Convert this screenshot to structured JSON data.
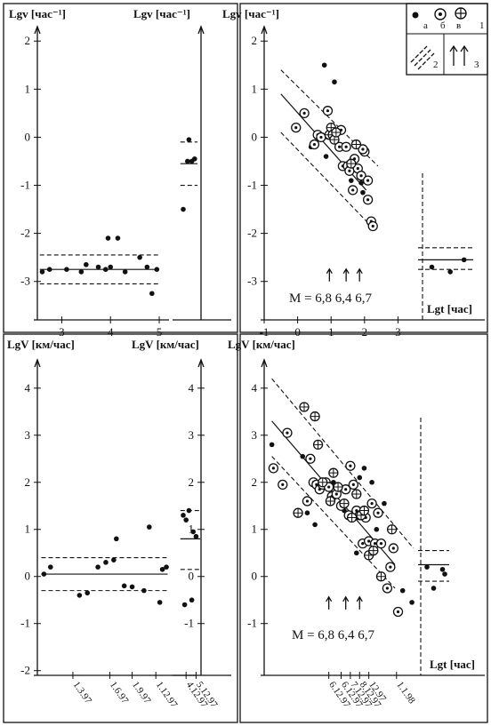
{
  "chart_data": [
    {
      "id": "top-1",
      "type": "scatter",
      "ylabel": "Lgv [час⁻¹]",
      "xlim": [
        2.5,
        5.2
      ],
      "ylim": [
        -3.8,
        2.3
      ],
      "xticks": [
        3,
        4,
        5
      ],
      "yticks": [
        -3,
        -2,
        -1,
        0,
        1,
        2
      ],
      "points": [
        [
          2.6,
          -2.8
        ],
        [
          2.75,
          -2.75
        ],
        [
          3.1,
          -2.75
        ],
        [
          3.4,
          -2.8
        ],
        [
          3.5,
          -2.65
        ],
        [
          3.75,
          -2.7
        ],
        [
          3.9,
          -2.75
        ],
        [
          4.0,
          -2.7
        ],
        [
          3.95,
          -2.1
        ],
        [
          4.15,
          -2.1
        ],
        [
          4.3,
          -2.8
        ],
        [
          4.6,
          -2.5
        ],
        [
          4.75,
          -2.7
        ],
        [
          4.85,
          -3.25
        ],
        [
          4.95,
          -2.75
        ]
      ],
      "fit": [
        [
          2.55,
          -2.75
        ],
        [
          5.0,
          -2.75
        ]
      ],
      "band": [
        [
          [
            2.55,
            -2.45
          ],
          [
            5.0,
            -2.45
          ]
        ],
        [
          [
            2.55,
            -3.05
          ],
          [
            5.0,
            -3.05
          ]
        ]
      ]
    },
    {
      "id": "top-2",
      "type": "scatter",
      "ylabel": "Lgv [час⁻¹]",
      "xlim": [
        0,
        1
      ],
      "ylim": [
        -3.8,
        2.3
      ],
      "points": [
        [
          0.4,
          -0.5
        ],
        [
          0.45,
          -0.05
        ],
        [
          0.55,
          -0.5
        ],
        [
          0.65,
          -0.45
        ],
        [
          0.25,
          -1.5
        ]
      ],
      "fit": [
        [
          0.15,
          -0.55
        ],
        [
          0.75,
          -0.55
        ]
      ],
      "band": [
        [
          [
            0.15,
            -0.1
          ],
          [
            0.75,
            -0.1
          ]
        ],
        [
          [
            0.15,
            -1.0
          ],
          [
            0.75,
            -1.0
          ]
        ]
      ]
    },
    {
      "id": "top-3",
      "type": "scatter",
      "ylabel": "Lgv [час⁻¹]",
      "xlabel": "Lgt [час]",
      "xlim": [
        -1,
        3.6
      ],
      "ylim": [
        -3.8,
        2.3
      ],
      "xticks": [
        -1,
        0,
        1,
        2,
        3
      ],
      "yticks": [
        -3,
        -2,
        -1,
        0,
        1,
        2
      ],
      "legend_top": [
        "а",
        "б",
        "в",
        "1"
      ],
      "legend_bottom": [
        "2",
        "3"
      ],
      "annotation": {
        "text": "M = 6,8    6,4    6,7",
        "arrows_x": [
          0.95,
          1.45,
          1.85
        ],
        "y": -3.0
      },
      "series": [
        {
          "name": "а",
          "marker": "dot",
          "points": [
            [
              0.8,
              1.5
            ],
            [
              1.1,
              1.15
            ],
            [
              0.85,
              -0.4
            ],
            [
              1.9,
              -0.95
            ],
            [
              1.95,
              -1.15
            ],
            [
              0.4,
              -0.2
            ],
            [
              0.9,
              0.0
            ],
            [
              1.6,
              -0.9
            ]
          ]
        },
        {
          "name": "б",
          "marker": "circle-dot",
          "points": [
            [
              0.2,
              0.5
            ],
            [
              0.9,
              0.55
            ],
            [
              -0.05,
              0.2
            ],
            [
              0.6,
              0.05
            ],
            [
              0.7,
              0.0
            ],
            [
              1.25,
              -0.2
            ],
            [
              1.3,
              0.15
            ],
            [
              1.35,
              -0.6
            ],
            [
              1.45,
              -0.2
            ],
            [
              1.5,
              -0.6
            ],
            [
              1.55,
              -0.7
            ],
            [
              1.7,
              -0.45
            ],
            [
              1.8,
              -0.65
            ],
            [
              1.65,
              -1.1
            ],
            [
              1.9,
              -0.8
            ],
            [
              2.0,
              -0.3
            ],
            [
              2.1,
              -0.9
            ],
            [
              2.2,
              -1.75
            ],
            [
              2.25,
              -1.85
            ],
            [
              2.1,
              -1.3
            ],
            [
              1.95,
              -0.25
            ],
            [
              0.5,
              -0.15
            ]
          ]
        },
        {
          "name": "в",
          "marker": "circle-cross",
          "points": [
            [
              0.95,
              0.05
            ],
            [
              1.0,
              0.2
            ],
            [
              1.05,
              0.05
            ],
            [
              1.1,
              -0.05
            ],
            [
              1.15,
              0.1
            ],
            [
              1.6,
              -0.55
            ],
            [
              1.75,
              -0.15
            ]
          ]
        }
      ],
      "fit": [
        [
          -0.5,
          0.9
        ],
        [
          2.05,
          -1.1
        ]
      ],
      "band": [
        [
          [
            -0.5,
            1.4
          ],
          [
            2.4,
            -0.6
          ]
        ],
        [
          [
            -0.5,
            0.1
          ],
          [
            2.2,
            -1.85
          ]
        ]
      ],
      "inset": {
        "points": [
          [
            3.1,
            -2.7
          ],
          [
            3.3,
            -2.8
          ],
          [
            3.45,
            -2.55
          ]
        ],
        "fit": [
          [
            2.95,
            -2.55
          ],
          [
            3.55,
            -2.55
          ]
        ],
        "band": [
          [
            [
              2.95,
              -2.3
            ],
            [
              3.55,
              -2.3
            ]
          ],
          [
            [
              2.95,
              -2.75
            ],
            [
              3.55,
              -2.75
            ]
          ]
        ]
      }
    },
    {
      "id": "bottom-1",
      "type": "scatter",
      "ylabel": "LgV [км/час]",
      "xlim": [
        0,
        1
      ],
      "ylim": [
        -2.1,
        4.6
      ],
      "yticks": [
        -2,
        -1,
        0,
        1,
        2,
        3,
        4
      ],
      "xticklabels": [
        "1.3.97",
        "1.6.97",
        "1.9.97",
        "1.12.97"
      ],
      "xtick_pos": [
        0.27,
        0.55,
        0.72,
        0.9
      ],
      "points": [
        [
          0.05,
          0.05
        ],
        [
          0.1,
          0.2
        ],
        [
          0.32,
          -0.4
        ],
        [
          0.38,
          -0.35
        ],
        [
          0.46,
          0.2
        ],
        [
          0.52,
          0.3
        ],
        [
          0.58,
          0.35
        ],
        [
          0.6,
          0.8
        ],
        [
          0.66,
          -0.2
        ],
        [
          0.72,
          -0.22
        ],
        [
          0.81,
          -0.3
        ],
        [
          0.85,
          1.05
        ],
        [
          0.93,
          -0.55
        ],
        [
          0.98,
          0.2
        ],
        [
          0.95,
          0.15
        ]
      ],
      "fit": [
        [
          0.03,
          0.05
        ],
        [
          0.99,
          0.05
        ]
      ],
      "band": [
        [
          [
            0.03,
            0.4
          ],
          [
            0.99,
            0.4
          ]
        ],
        [
          [
            0.03,
            -0.3
          ],
          [
            0.99,
            -0.3
          ]
        ]
      ]
    },
    {
      "id": "bottom-2",
      "type": "scatter",
      "ylabel": "LgV [км/час]",
      "xlim": [
        0,
        1
      ],
      "ylim": [
        -2.1,
        4.6
      ],
      "yticks": [
        4,
        3,
        2,
        1,
        0,
        -1
      ],
      "xticklabels": [
        "4.12.97",
        "5.12.97"
      ],
      "xtick_pos": [
        0.35,
        0.7
      ],
      "points": [
        [
          0.25,
          1.3
        ],
        [
          0.35,
          1.2
        ],
        [
          0.45,
          1.4
        ],
        [
          0.6,
          0.95
        ],
        [
          0.7,
          0.85
        ],
        [
          0.3,
          -0.6
        ],
        [
          0.55,
          -0.5
        ]
      ],
      "fit": [
        [
          0.15,
          0.8
        ],
        [
          0.85,
          0.8
        ]
      ],
      "band": [
        [
          [
            0.15,
            1.4
          ],
          [
            0.85,
            1.4
          ]
        ],
        [
          [
            0.15,
            0.15
          ],
          [
            0.85,
            0.15
          ]
        ]
      ]
    },
    {
      "id": "bottom-3",
      "type": "scatter",
      "ylabel": "LgV [км/час]",
      "xlabel": "Lgt [час]",
      "xlim": [
        0,
        1
      ],
      "ylim": [
        -2.1,
        4.6
      ],
      "yticks": [
        -1,
        0,
        1,
        2,
        3,
        4
      ],
      "xticklabels": [
        "6.12.97",
        "6.12.97",
        "7.12.97",
        "8.12.97",
        "12.97",
        "1.1.98"
      ],
      "xtick_pos": [
        0.42,
        0.5,
        0.56,
        0.62,
        0.68,
        0.86
      ],
      "annotation": {
        "text": "M = 6,8    6,4    6,7",
        "arrows_x": [
          0.42,
          0.53,
          0.62
        ],
        "y": -0.7
      },
      "series": [
        {
          "name": "а",
          "marker": "dot",
          "points": [
            [
              0.05,
              2.8
            ],
            [
              0.25,
              2.55
            ],
            [
              0.28,
              1.35
            ],
            [
              0.33,
              1.1
            ],
            [
              0.45,
              2.0
            ],
            [
              0.52,
              1.4
            ],
            [
              0.6,
              0.5
            ],
            [
              0.62,
              2.1
            ],
            [
              0.65,
              2.3
            ],
            [
              0.7,
              2.0
            ],
            [
              0.73,
              1.0
            ],
            [
              0.78,
              1.55
            ],
            [
              0.9,
              -0.3
            ],
            [
              0.96,
              -0.55
            ]
          ]
        },
        {
          "name": "б",
          "marker": "circle-dot",
          "points": [
            [
              0.06,
              2.3
            ],
            [
              0.12,
              1.95
            ],
            [
              0.15,
              3.05
            ],
            [
              0.28,
              1.6
            ],
            [
              0.3,
              2.5
            ],
            [
              0.32,
              2.0
            ],
            [
              0.34,
              1.95
            ],
            [
              0.36,
              1.85
            ],
            [
              0.38,
              1.95
            ],
            [
              0.4,
              2.0
            ],
            [
              0.42,
              1.9
            ],
            [
              0.44,
              1.7
            ],
            [
              0.47,
              1.75
            ],
            [
              0.5,
              1.5
            ],
            [
              0.53,
              1.85
            ],
            [
              0.55,
              1.3
            ],
            [
              0.56,
              2.35
            ],
            [
              0.58,
              1.95
            ],
            [
              0.6,
              1.4
            ],
            [
              0.62,
              1.3
            ],
            [
              0.64,
              0.7
            ],
            [
              0.66,
              1.25
            ],
            [
              0.68,
              0.75
            ],
            [
              0.7,
              1.55
            ],
            [
              0.72,
              0.7
            ],
            [
              0.74,
              1.35
            ],
            [
              0.76,
              0.7
            ],
            [
              0.8,
              -0.25
            ],
            [
              0.82,
              0.2
            ],
            [
              0.84,
              0.6
            ],
            [
              0.87,
              -0.75
            ]
          ]
        },
        {
          "name": "в",
          "marker": "circle-cross",
          "points": [
            [
              0.22,
              1.35
            ],
            [
              0.26,
              3.6
            ],
            [
              0.33,
              3.4
            ],
            [
              0.35,
              2.8
            ],
            [
              0.38,
              2.0
            ],
            [
              0.43,
              1.6
            ],
            [
              0.45,
              2.2
            ],
            [
              0.48,
              1.9
            ],
            [
              0.52,
              1.55
            ],
            [
              0.57,
              1.25
            ],
            [
              0.6,
              1.75
            ],
            [
              0.63,
              1.3
            ],
            [
              0.65,
              1.4
            ],
            [
              0.68,
              0.45
            ],
            [
              0.71,
              0.55
            ],
            [
              0.76,
              0.0
            ],
            [
              0.83,
              1.0
            ]
          ]
        }
      ],
      "fit": [
        [
          0.05,
          3.3
        ],
        [
          0.85,
          0.25
        ]
      ],
      "band": [
        [
          [
            0.05,
            4.2
          ],
          [
            0.97,
            0.6
          ]
        ],
        [
          [
            0.05,
            2.55
          ],
          [
            0.85,
            -0.25
          ]
        ]
      ],
      "inset": {
        "points": [
          [
            0.9,
            0.2
          ],
          [
            0.93,
            -0.25
          ],
          [
            0.97,
            0.15
          ],
          [
            0.98,
            0.05
          ]
        ],
        "fit": [
          [
            0.86,
            0.25
          ],
          [
            1.0,
            0.25
          ]
        ],
        "band": [
          [
            [
              0.86,
              0.55
            ],
            [
              1.0,
              0.55
            ]
          ],
          [
            [
              0.86,
              -0.1
            ],
            [
              1.0,
              -0.1
            ]
          ]
        ]
      }
    }
  ]
}
